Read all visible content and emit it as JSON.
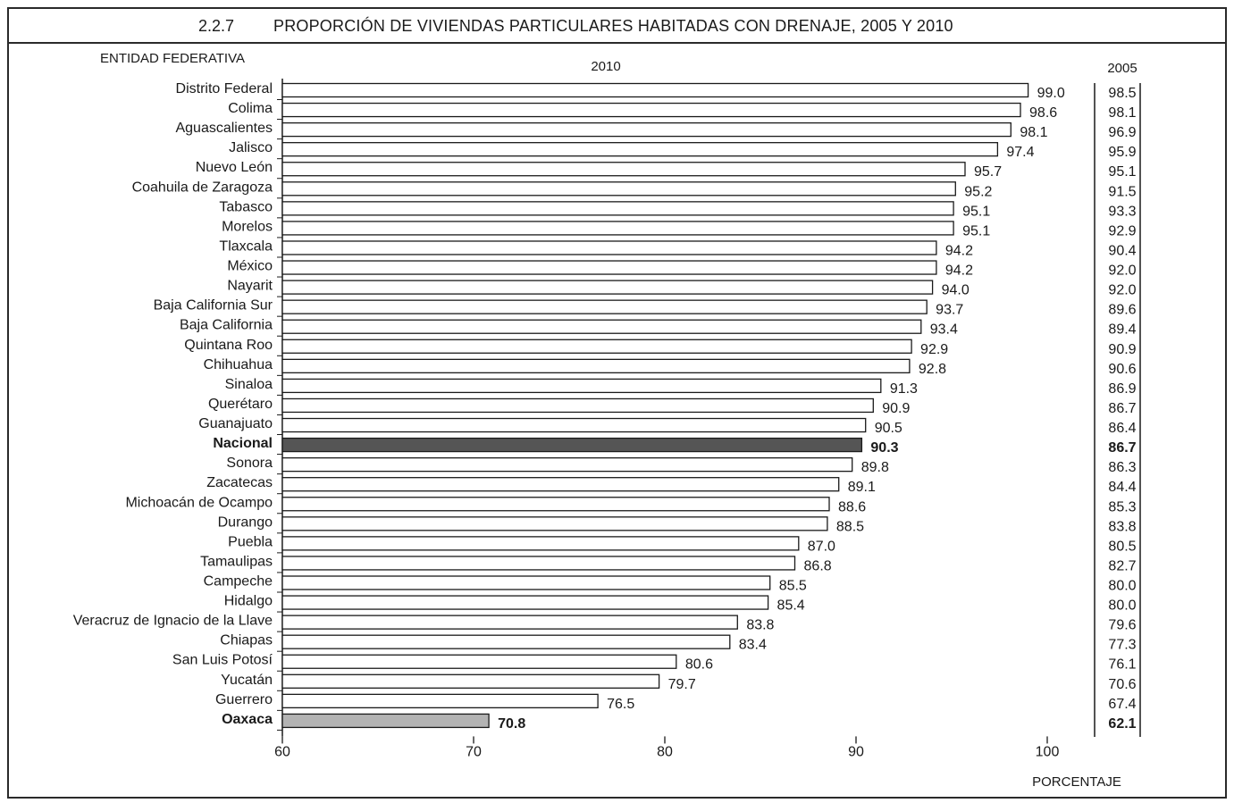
{
  "header": {
    "section_number": "2.2.7",
    "title": "PROPORCIÓN DE VIVIENDAS PARTICULARES HABITADAS CON DRENAJE, 2005 Y 2010"
  },
  "chart_data": {
    "type": "bar",
    "orientation": "horizontal",
    "row_axis_header": "ENTIDAD FEDERATIVA",
    "series_label_2010": "2010",
    "series_label_2005": "2005",
    "xlabel": "PORCENTAJE",
    "xlim": [
      60,
      102.5
    ],
    "xticks": [
      60,
      70,
      80,
      90,
      100
    ],
    "categories": [
      "Distrito Federal",
      "Colima",
      "Aguascalientes",
      "Jalisco",
      "Nuevo León",
      "Coahuila de Zaragoza",
      "Tabasco",
      "Morelos",
      "Tlaxcala",
      "México",
      "Nayarit",
      "Baja California Sur",
      "Baja California",
      "Quintana Roo",
      "Chihuahua",
      "Sinaloa",
      "Querétaro",
      "Guanajuato",
      "Nacional",
      "Sonora",
      "Zacatecas",
      "Michoacán de Ocampo",
      "Durango",
      "Puebla",
      "Tamaulipas",
      "Campeche",
      "Hidalgo",
      "Veracruz de Ignacio de la Llave",
      "Chiapas",
      "San Luis Potosí",
      "Yucatán",
      "Guerrero",
      "Oaxaca"
    ],
    "values_2010": [
      99.0,
      98.6,
      98.1,
      97.4,
      95.7,
      95.2,
      95.1,
      95.1,
      94.2,
      94.2,
      94.0,
      93.7,
      93.4,
      92.9,
      92.8,
      91.3,
      90.9,
      90.5,
      90.3,
      89.8,
      89.1,
      88.6,
      88.5,
      87.0,
      86.8,
      85.5,
      85.4,
      83.8,
      83.4,
      80.6,
      79.7,
      76.5,
      70.8
    ],
    "labels_2010": [
      "99.0",
      "98.6",
      "98.1",
      "97.4",
      "95.7",
      "95.2",
      "95.1",
      "95.1",
      "94.2",
      "94.2",
      "94.0",
      "93.7",
      "93.4",
      "92.9",
      "92.8",
      "91.3",
      "90.9",
      "90.5",
      "90.3",
      "89.8",
      "89.1",
      "88.6",
      "88.5",
      "87.0",
      "86.8",
      "85.5",
      "85.4",
      "83.8",
      "83.4",
      "80.6",
      "79.7",
      "76.5",
      "70.8"
    ],
    "values_2005": [
      "98.5",
      "98.1",
      "96.9",
      "95.9",
      "95.1",
      "91.5",
      "93.3",
      "92.9",
      "90.4",
      "92.0",
      "92.0",
      "89.6",
      "89.4",
      "90.9",
      "90.6",
      "86.9",
      "86.7",
      "86.4",
      "86.7",
      "86.3",
      "84.4",
      "85.3",
      "83.8",
      "80.5",
      "82.7",
      "80.0",
      "80.0",
      "79.6",
      "77.3",
      "76.1",
      "70.6",
      "67.4",
      "62.1"
    ],
    "highlight_bold": [
      "Nacional",
      "Oaxaca"
    ],
    "colors": {
      "default": "#ffffff",
      "Nacional": "#555555",
      "Oaxaca": "#b3b3b3",
      "stroke": "#1a1a1a"
    }
  }
}
